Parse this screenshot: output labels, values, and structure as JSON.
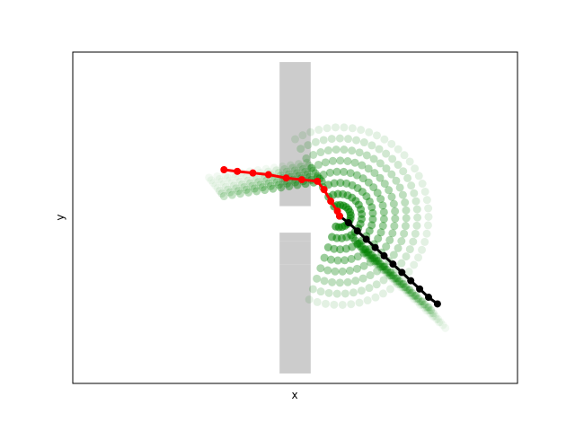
{
  "chart_data": {
    "type": "scatter",
    "title": "",
    "xlabel": "x",
    "ylabel": "y",
    "xticks": [],
    "yticks": [],
    "grid": false,
    "legend": "none",
    "xlim": [
      0,
      100
    ],
    "ylim": [
      0,
      100
    ],
    "colors": {
      "obstacle": "#cccccc",
      "samples": "#008000",
      "planned_path": "#ff0000",
      "reference_path": "#000000",
      "frame": "#000000"
    },
    "obstacles": [
      {
        "x": [
          46.5,
          53.5
        ],
        "y": [
          53.5,
          97
        ]
      },
      {
        "x": [
          46.5,
          53.5
        ],
        "y": [
          43,
          45.5
        ]
      },
      {
        "x": [
          46.5,
          53.5
        ],
        "y": [
          36,
          43
        ]
      },
      {
        "x": [
          46.5,
          53.5
        ],
        "y": [
          3,
          36
        ]
      }
    ],
    "red_path": {
      "x": [
        34,
        37,
        40.5,
        44,
        48,
        51.5,
        55,
        56.5,
        58,
        59.5,
        60
      ],
      "y": [
        64.5,
        64,
        63.5,
        63,
        62,
        61.5,
        61,
        58.5,
        55,
        52,
        50.5
      ]
    },
    "black_path": {
      "x": [
        60,
        62,
        64,
        66,
        68,
        70,
        72,
        74,
        76,
        78,
        80,
        82
      ],
      "y": [
        50.5,
        48.5,
        46,
        43.5,
        41,
        38.5,
        36,
        33.5,
        31,
        28.5,
        26,
        24
      ]
    },
    "sample_arcs": {
      "center": [
        60,
        50.5
      ],
      "radii": [
        2.5,
        5,
        7.5,
        10,
        12.5,
        15,
        17.5,
        20
      ]
    },
    "sample_rays": {
      "upper": {
        "from": [
          56,
          61
        ],
        "to": [
          34,
          56.5
        ]
      },
      "lower": {
        "from": [
          63,
          44
        ],
        "to": [
          80,
          23
        ]
      }
    }
  }
}
